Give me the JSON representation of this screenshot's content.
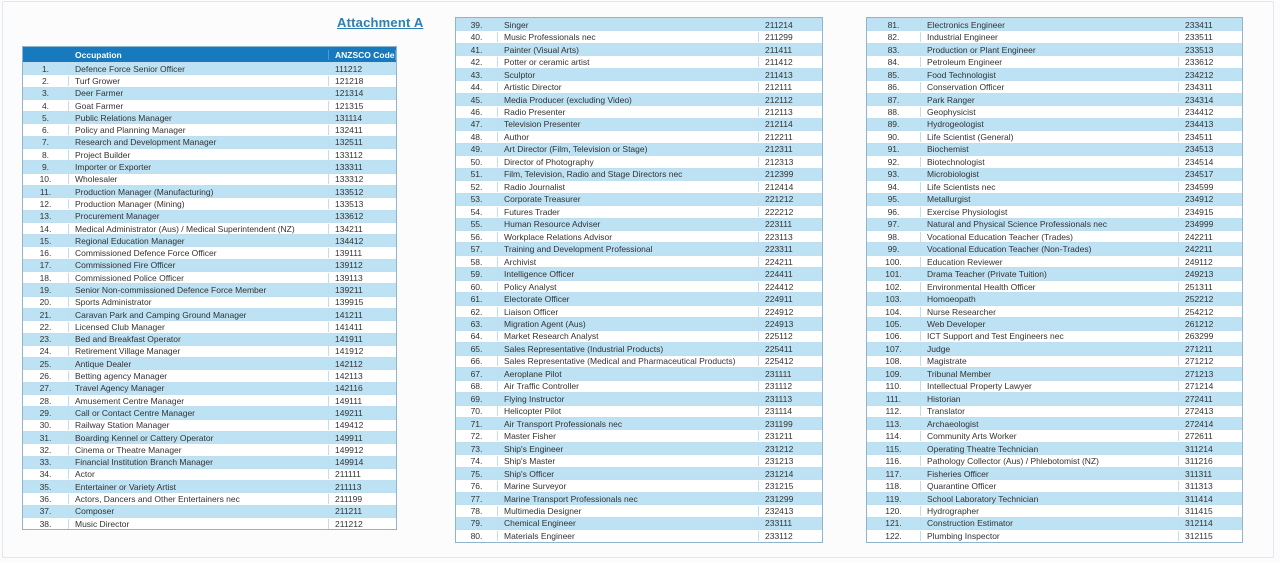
{
  "page": {
    "title": "Attachment A"
  },
  "colors": {
    "header_bg": "#1779BE",
    "row_stripe": "#BDE2F3",
    "table_border": "#8FB4CB",
    "title_color": "#2C7FB4"
  },
  "header": {
    "occupation": "Occupation",
    "code": "ANZSCO Code"
  },
  "tables": [
    {
      "name": "occupations-1-38",
      "rows": [
        [
          "1.",
          "Defence Force Senior Officer",
          "111212"
        ],
        [
          "2.",
          "Turf Grower",
          "121218"
        ],
        [
          "3.",
          "Deer Farmer",
          "121314"
        ],
        [
          "4.",
          "Goat Farmer",
          "121315"
        ],
        [
          "5.",
          "Public Relations Manager",
          "131114"
        ],
        [
          "6.",
          "Policy and Planning Manager",
          "132411"
        ],
        [
          "7.",
          "Research and Development Manager",
          "132511"
        ],
        [
          "8.",
          "Project Builder",
          "133112"
        ],
        [
          "9.",
          "Importer or Exporter",
          "133311"
        ],
        [
          "10.",
          "Wholesaler",
          "133312"
        ],
        [
          "11.",
          "Production Manager (Manufacturing)",
          "133512"
        ],
        [
          "12.",
          "Production Manager (Mining)",
          "133513"
        ],
        [
          "13.",
          "Procurement Manager",
          "133612"
        ],
        [
          "14.",
          "Medical Administrator (Aus) / Medical Superintendent (NZ)",
          "134211"
        ],
        [
          "15.",
          "Regional Education Manager",
          "134412"
        ],
        [
          "16.",
          "Commissioned Defence Force Officer",
          "139111"
        ],
        [
          "17.",
          "Commissioned Fire Officer",
          "139112"
        ],
        [
          "18.",
          "Commissioned Police Officer",
          "139113"
        ],
        [
          "19.",
          "Senior Non-commissioned Defence Force Member",
          "139211"
        ],
        [
          "20.",
          "Sports Administrator",
          "139915"
        ],
        [
          "21.",
          "Caravan Park and Camping Ground Manager",
          "141211"
        ],
        [
          "22.",
          "Licensed Club Manager",
          "141411"
        ],
        [
          "23.",
          "Bed and Breakfast Operator",
          "141911"
        ],
        [
          "24.",
          "Retirement Village Manager",
          "141912"
        ],
        [
          "25.",
          "Antique Dealer",
          "142112"
        ],
        [
          "26.",
          "Betting agency Manager",
          "142113"
        ],
        [
          "27.",
          "Travel Agency Manager",
          "142116"
        ],
        [
          "28.",
          "Amusement Centre Manager",
          "149111"
        ],
        [
          "29.",
          "Call or Contact Centre Manager",
          "149211"
        ],
        [
          "30.",
          "Railway Station Manager",
          "149412"
        ],
        [
          "31.",
          "Boarding Kennel or Cattery Operator",
          "149911"
        ],
        [
          "32.",
          "Cinema or Theatre Manager",
          "149912"
        ],
        [
          "33.",
          "Financial Institution Branch Manager",
          "149914"
        ],
        [
          "34.",
          "Actor",
          "211111"
        ],
        [
          "35.",
          "Entertainer or Variety Artist",
          "211113"
        ],
        [
          "36.",
          "Actors, Dancers and Other Entertainers nec",
          "211199"
        ],
        [
          "37.",
          "Composer",
          "211211"
        ],
        [
          "38.",
          "Music Director",
          "211212"
        ]
      ]
    },
    {
      "name": "occupations-39-80",
      "rows": [
        [
          "39.",
          "Singer",
          "211214"
        ],
        [
          "40.",
          "Music Professionals nec",
          "211299"
        ],
        [
          "41.",
          "Painter (Visual Arts)",
          "211411"
        ],
        [
          "42.",
          "Potter or ceramic artist",
          "211412"
        ],
        [
          "43.",
          "Sculptor",
          "211413"
        ],
        [
          "44.",
          "Artistic Director",
          "212111"
        ],
        [
          "45.",
          "Media Producer (excluding Video)",
          "212112"
        ],
        [
          "46.",
          "Radio Presenter",
          "212113"
        ],
        [
          "47.",
          "Television Presenter",
          "212114"
        ],
        [
          "48.",
          "Author",
          "212211"
        ],
        [
          "49.",
          "Art Director (Film, Television or Stage)",
          "212311"
        ],
        [
          "50.",
          "Director of Photography",
          "212313"
        ],
        [
          "51.",
          "Film, Television, Radio and Stage Directors nec",
          "212399"
        ],
        [
          "52.",
          "Radio Journalist",
          "212414"
        ],
        [
          "53.",
          "Corporate Treasurer",
          "221212"
        ],
        [
          "54.",
          "Futures Trader",
          "222212"
        ],
        [
          "55.",
          "Human Resource Adviser",
          "223111"
        ],
        [
          "56.",
          "Workplace Relations Advisor",
          "223113"
        ],
        [
          "57.",
          "Training and Development Professional",
          "223311"
        ],
        [
          "58.",
          "Archivist",
          "224211"
        ],
        [
          "59.",
          "Intelligence Officer",
          "224411"
        ],
        [
          "60.",
          "Policy Analyst",
          "224412"
        ],
        [
          "61.",
          "Electorate Officer",
          "224911"
        ],
        [
          "62.",
          "Liaison Officer",
          "224912"
        ],
        [
          "63.",
          "Migration Agent (Aus)",
          "224913"
        ],
        [
          "64.",
          "Market Research Analyst",
          "225112"
        ],
        [
          "65.",
          "Sales Representative (Industrial Products)",
          "225411"
        ],
        [
          "66.",
          "Sales Representative (Medical and Pharmaceutical Products)",
          "225412"
        ],
        [
          "67.",
          "Aeroplane Pilot",
          "231111"
        ],
        [
          "68.",
          "Air Traffic Controller",
          "231112"
        ],
        [
          "69.",
          "Flying Instructor",
          "231113"
        ],
        [
          "70.",
          "Helicopter Pilot",
          "231114"
        ],
        [
          "71.",
          "Air Transport Professionals nec",
          "231199"
        ],
        [
          "72.",
          "Master Fisher",
          "231211"
        ],
        [
          "73.",
          "Ship's Engineer",
          "231212"
        ],
        [
          "74.",
          "Ship's Master",
          "231213"
        ],
        [
          "75.",
          "Ship's Officer",
          "231214"
        ],
        [
          "76.",
          "Marine Surveyor",
          "231215"
        ],
        [
          "77.",
          "Marine Transport Professionals nec",
          "231299"
        ],
        [
          "78.",
          "Multimedia Designer",
          "232413"
        ],
        [
          "79.",
          "Chemical Engineer",
          "233111"
        ],
        [
          "80.",
          "Materials Engineer",
          "233112"
        ]
      ]
    },
    {
      "name": "occupations-81-122",
      "rows": [
        [
          "81.",
          "Electronics Engineer",
          "233411"
        ],
        [
          "82.",
          "Industrial Engineer",
          "233511"
        ],
        [
          "83.",
          "Production or Plant Engineer",
          "233513"
        ],
        [
          "84.",
          "Petroleum Engineer",
          "233612"
        ],
        [
          "85.",
          "Food Technologist",
          "234212"
        ],
        [
          "86.",
          "Conservation Officer",
          "234311"
        ],
        [
          "87.",
          "Park Ranger",
          "234314"
        ],
        [
          "88.",
          "Geophysicist",
          "234412"
        ],
        [
          "89.",
          "Hydrogeologist",
          "234413"
        ],
        [
          "90.",
          "Life Scientist (General)",
          "234511"
        ],
        [
          "91.",
          "Biochemist",
          "234513"
        ],
        [
          "92.",
          "Biotechnologist",
          "234514"
        ],
        [
          "93.",
          "Microbiologist",
          "234517"
        ],
        [
          "94.",
          "Life Scientists nec",
          "234599"
        ],
        [
          "95.",
          "Metallurgist",
          "234912"
        ],
        [
          "96.",
          "Exercise Physiologist",
          "234915"
        ],
        [
          "97.",
          "Natural and Physical Science Professionals nec",
          "234999"
        ],
        [
          "98.",
          "Vocational Education Teacher (Trades)",
          "242211"
        ],
        [
          "99.",
          "Vocational Education Teacher (Non-Trades)",
          "242211"
        ],
        [
          "100.",
          "Education Reviewer",
          "249112"
        ],
        [
          "101.",
          "Drama Teacher (Private Tuition)",
          "249213"
        ],
        [
          "102.",
          "Environmental Health Officer",
          "251311"
        ],
        [
          "103.",
          "Homoeopath",
          "252212"
        ],
        [
          "104.",
          "Nurse Researcher",
          "254212"
        ],
        [
          "105.",
          "Web Developer",
          "261212"
        ],
        [
          "106.",
          "ICT Support and Test Engineers nec",
          "263299"
        ],
        [
          "107.",
          "Judge",
          "271211"
        ],
        [
          "108.",
          "Magistrate",
          "271212"
        ],
        [
          "109.",
          "Tribunal Member",
          "271213"
        ],
        [
          "110.",
          "Intellectual Property Lawyer",
          "271214"
        ],
        [
          "111.",
          "Historian",
          "272411"
        ],
        [
          "112.",
          "Translator",
          "272413"
        ],
        [
          "113.",
          "Archaeologist",
          "272414"
        ],
        [
          "114.",
          "Community Arts Worker",
          "272611"
        ],
        [
          "115.",
          "Operating Theatre Technician",
          "311214"
        ],
        [
          "116.",
          "Pathology Collector (Aus) / Phlebotomist (NZ)",
          "311216"
        ],
        [
          "117.",
          "Fisheries Officer",
          "311311"
        ],
        [
          "118.",
          "Quarantine Officer",
          "311313"
        ],
        [
          "119.",
          "School Laboratory Technician",
          "311414"
        ],
        [
          "120.",
          "Hydrographer",
          "311415"
        ],
        [
          "121.",
          "Construction Estimator",
          "312114"
        ],
        [
          "122.",
          "Plumbing Inspector",
          "312115"
        ]
      ]
    }
  ]
}
